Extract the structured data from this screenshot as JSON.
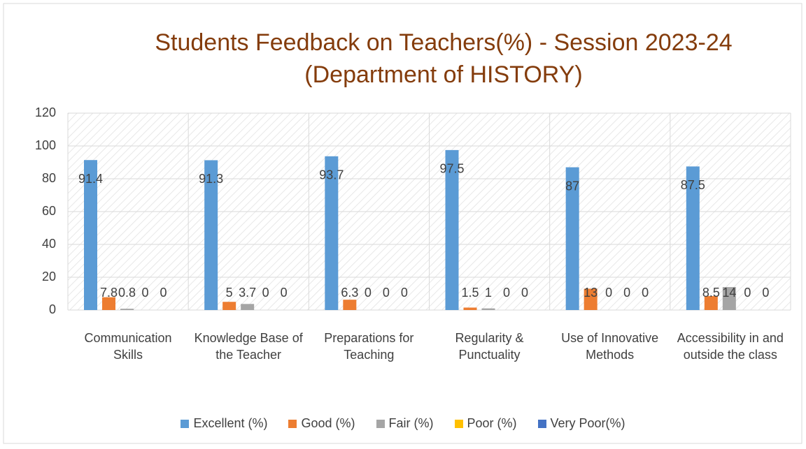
{
  "chart_data": {
    "type": "bar",
    "title": "Students Feedback on Teachers(%) - Session 2023-24 (Department of HISTORY)",
    "categories": [
      "Communication Skills",
      "Knowledge Base of the Teacher",
      "Preparations for Teaching",
      "Regularity & Punctuality",
      "Use of Innovative Methods",
      "Accessibility in and outside the class"
    ],
    "series": [
      {
        "name": "Excellent (%)",
        "color": "#5b9bd5",
        "values": [
          91.4,
          91.3,
          93.7,
          97.5,
          87,
          87.5
        ]
      },
      {
        "name": "Good (%)",
        "color": "#ed7d31",
        "values": [
          7.8,
          5,
          6.3,
          1.5,
          13,
          8.5
        ]
      },
      {
        "name": "Fair (%)",
        "color": "#a5a5a5",
        "values": [
          0.8,
          3.7,
          0,
          1,
          0,
          14
        ]
      },
      {
        "name": "Poor (%)",
        "color": "#ffc000",
        "values": [
          0,
          0,
          0,
          0,
          0,
          0
        ]
      },
      {
        "name": "Very Poor(%)",
        "color": "#4472c4",
        "values": [
          0,
          0,
          0,
          0,
          0,
          0
        ]
      }
    ],
    "ylim": [
      0,
      120
    ],
    "yticks": [
      0,
      20,
      40,
      60,
      80,
      100,
      120
    ],
    "grid": true,
    "legend": "bottom"
  }
}
